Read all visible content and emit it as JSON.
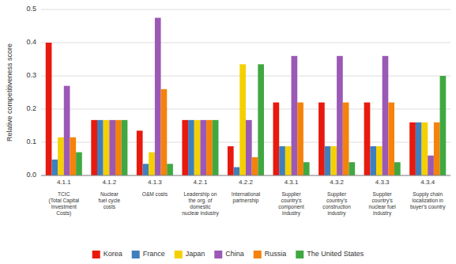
{
  "chart_data": {
    "type": "bar",
    "categories": [
      "4.1.1",
      "4.1.2",
      "4.1.3",
      "4.2.1",
      "4.2.2",
      "4.3.1",
      "4.3.2",
      "4.3.3",
      "4.3.4"
    ],
    "annotations": [
      "TCIC\n(Total Capital\nInvestment\nCosts)",
      "Nuclear\nfuel cycle\ncosts",
      "O&M costs",
      "Leadership on\nthe org. of\ndomestic\nnuclear industry",
      "International\npartnership",
      "Supplier\ncountry's\ncomponent\nindustry",
      "Supplier\ncountry's\nconstruction\nindustry",
      "Supplier\ncountry's\nnuclear fuel\nindustry",
      "Supply chain\nlocalization in\nbuyer's country"
    ],
    "series": [
      {
        "name": "Korea",
        "color": "#e8190e",
        "values": [
          0.4,
          0.167,
          0.135,
          0.167,
          0.088,
          0.22,
          0.22,
          0.22,
          0.16
        ]
      },
      {
        "name": "France",
        "color": "#3f7fbd",
        "values": [
          0.048,
          0.167,
          0.035,
          0.167,
          0.025,
          0.088,
          0.088,
          0.088,
          0.16
        ]
      },
      {
        "name": "Japan",
        "color": "#f5d000",
        "values": [
          0.115,
          0.167,
          0.07,
          0.167,
          0.335,
          0.088,
          0.088,
          0.088,
          0.16
        ]
      },
      {
        "name": "China",
        "color": "#9b59b6",
        "values": [
          0.27,
          0.167,
          0.475,
          0.167,
          0.167,
          0.36,
          0.36,
          0.36,
          0.06
        ]
      },
      {
        "name": "Russia",
        "color": "#f5820a",
        "values": [
          0.115,
          0.167,
          0.26,
          0.167,
          0.055,
          0.22,
          0.22,
          0.22,
          0.16
        ]
      },
      {
        "name": "The United States",
        "color": "#40a840",
        "values": [
          0.07,
          0.167,
          0.035,
          0.167,
          0.335,
          0.04,
          0.04,
          0.04,
          0.3
        ]
      }
    ],
    "ylabel": "Relative competitiveness score",
    "ylim": [
      0,
      0.5
    ],
    "yticks": [
      {
        "value": 0,
        "label": "0.0"
      },
      0.1,
      0.2,
      0.3,
      0.4,
      0.5
    ],
    "grid": true,
    "legend": "bottom"
  }
}
